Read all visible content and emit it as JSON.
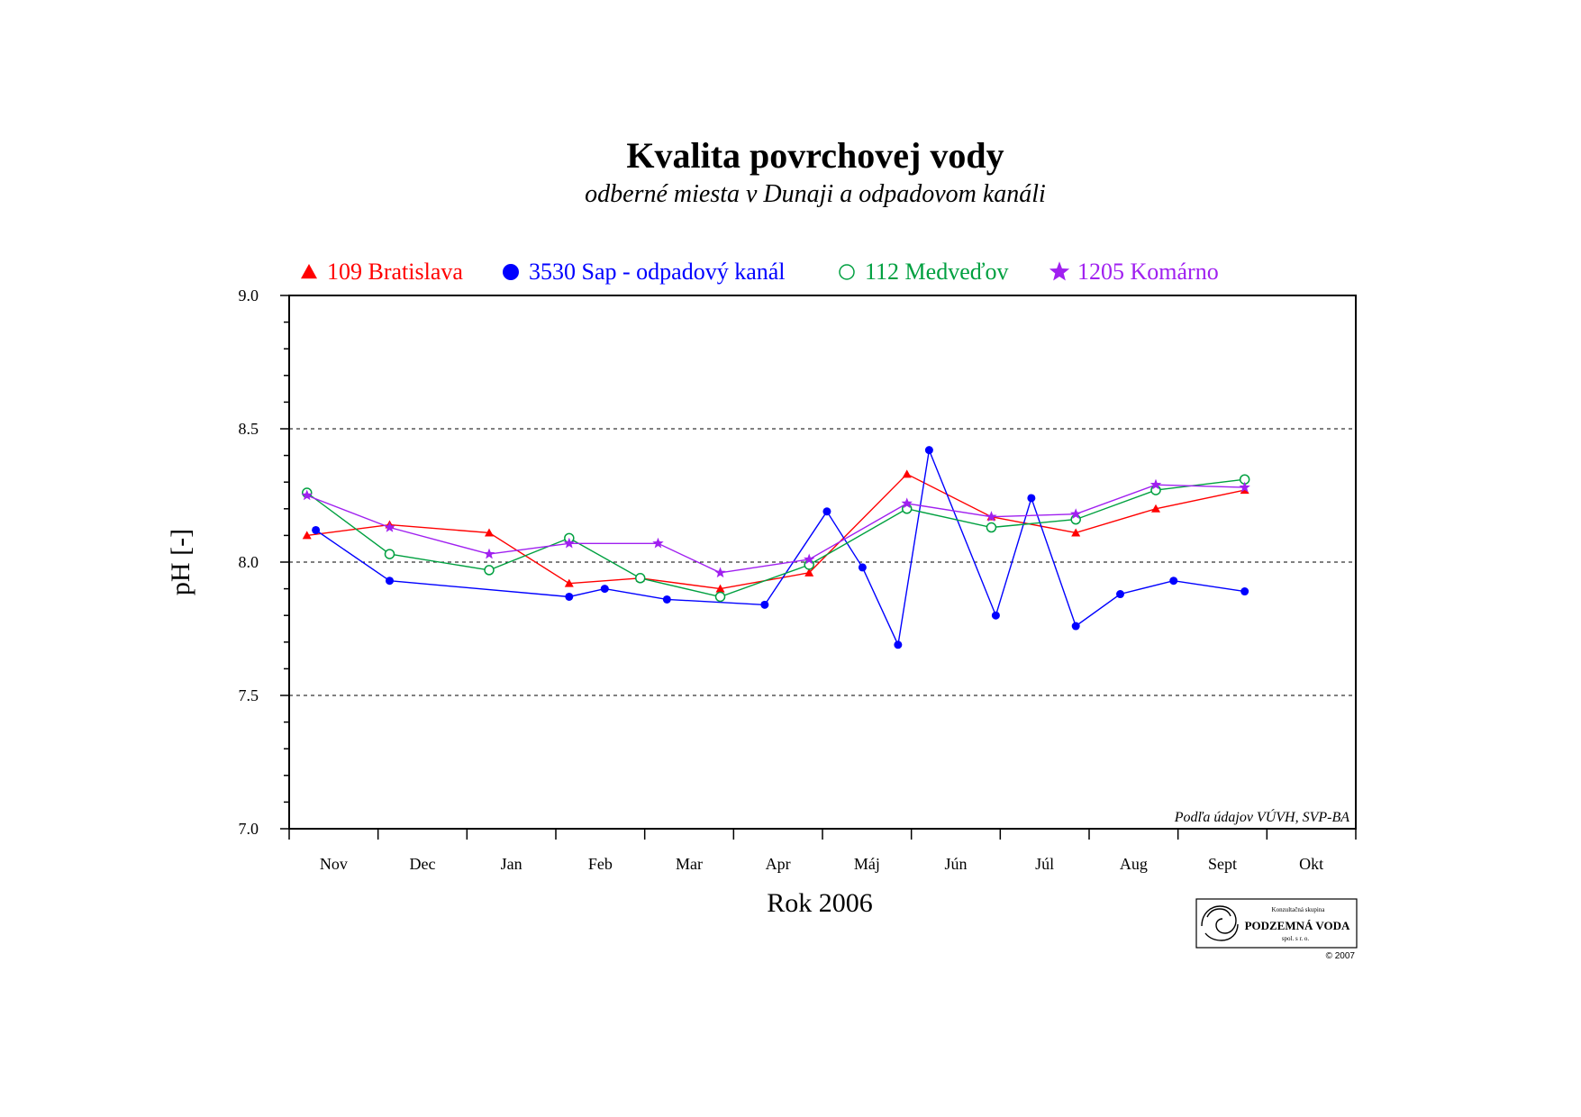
{
  "chart_data": {
    "type": "line",
    "title": "Kvalita povrchovej vody",
    "subtitle": "odberné miesta v Dunaji a odpadovom kanáli",
    "xlabel": "Rok 2006",
    "ylabel": "pH [-]",
    "ylim": [
      7.0,
      9.0
    ],
    "yticks": [
      "7.0",
      "7.5",
      "8.0",
      "8.5",
      "9.0"
    ],
    "ygrid": [
      7.5,
      8.0,
      8.5
    ],
    "categories": [
      "Nov",
      "Dec",
      "Jan",
      "Feb",
      "Mar",
      "Apr",
      "Máj",
      "Jún",
      "Júl",
      "Aug",
      "Sept",
      "Okt"
    ],
    "legend_position": "top",
    "series": [
      {
        "name": "109 Bratislava",
        "color": "#ff0000",
        "marker": "triangle",
        "points": [
          {
            "x": 0.2,
            "y": 8.1
          },
          {
            "x": 1.13,
            "y": 8.14
          },
          {
            "x": 2.25,
            "y": 8.11
          },
          {
            "x": 3.15,
            "y": 7.92
          },
          {
            "x": 3.95,
            "y": 7.94
          },
          {
            "x": 4.85,
            "y": 7.9
          },
          {
            "x": 5.85,
            "y": 7.96
          },
          {
            "x": 6.95,
            "y": 8.33
          },
          {
            "x": 7.9,
            "y": 8.17
          },
          {
            "x": 8.85,
            "y": 8.11
          },
          {
            "x": 9.75,
            "y": 8.2
          },
          {
            "x": 10.75,
            "y": 8.27
          }
        ]
      },
      {
        "name": "3530 Sap - odpadový kanál",
        "color": "#0000ff",
        "marker": "circle-filled",
        "points": [
          {
            "x": 0.3,
            "y": 8.12
          },
          {
            "x": 1.13,
            "y": 7.93
          },
          {
            "x": 3.15,
            "y": 7.87
          },
          {
            "x": 3.55,
            "y": 7.9
          },
          {
            "x": 4.25,
            "y": 7.86
          },
          {
            "x": 5.35,
            "y": 7.84
          },
          {
            "x": 6.05,
            "y": 8.19
          },
          {
            "x": 6.45,
            "y": 7.98
          },
          {
            "x": 6.85,
            "y": 7.69
          },
          {
            "x": 7.2,
            "y": 8.42
          },
          {
            "x": 7.95,
            "y": 7.8
          },
          {
            "x": 8.35,
            "y": 8.24
          },
          {
            "x": 8.85,
            "y": 7.76
          },
          {
            "x": 9.35,
            "y": 7.88
          },
          {
            "x": 9.95,
            "y": 7.93
          },
          {
            "x": 10.75,
            "y": 7.89
          }
        ]
      },
      {
        "name": "112 Medveďov",
        "color": "#00a040",
        "marker": "circle-open",
        "points": [
          {
            "x": 0.2,
            "y": 8.26
          },
          {
            "x": 1.13,
            "y": 8.03
          },
          {
            "x": 2.25,
            "y": 7.97
          },
          {
            "x": 3.15,
            "y": 8.09
          },
          {
            "x": 3.95,
            "y": 7.94
          },
          {
            "x": 4.85,
            "y": 7.87
          },
          {
            "x": 5.85,
            "y": 7.99
          },
          {
            "x": 6.95,
            "y": 8.2
          },
          {
            "x": 7.9,
            "y": 8.13
          },
          {
            "x": 8.85,
            "y": 8.16
          },
          {
            "x": 9.75,
            "y": 8.27
          },
          {
            "x": 10.75,
            "y": 8.31
          }
        ]
      },
      {
        "name": "1205 Komárno",
        "color": "#a020f0",
        "marker": "star",
        "points": [
          {
            "x": 0.2,
            "y": 8.25
          },
          {
            "x": 1.13,
            "y": 8.13
          },
          {
            "x": 2.25,
            "y": 8.03
          },
          {
            "x": 3.15,
            "y": 8.07
          },
          {
            "x": 4.15,
            "y": 8.07
          },
          {
            "x": 4.85,
            "y": 7.96
          },
          {
            "x": 5.85,
            "y": 8.01
          },
          {
            "x": 6.95,
            "y": 8.22
          },
          {
            "x": 7.9,
            "y": 8.17
          },
          {
            "x": 8.85,
            "y": 8.18
          },
          {
            "x": 9.75,
            "y": 8.29
          },
          {
            "x": 10.75,
            "y": 8.28
          }
        ]
      }
    ],
    "annotation": "Podľa údajov VÚVH, SVP-BA"
  },
  "logo": {
    "top_text": "Konzultačná skupina",
    "name": "PODZEMNÁ VODA",
    "sub_text": "spol. s r. o.",
    "copyright": "© 2007"
  }
}
